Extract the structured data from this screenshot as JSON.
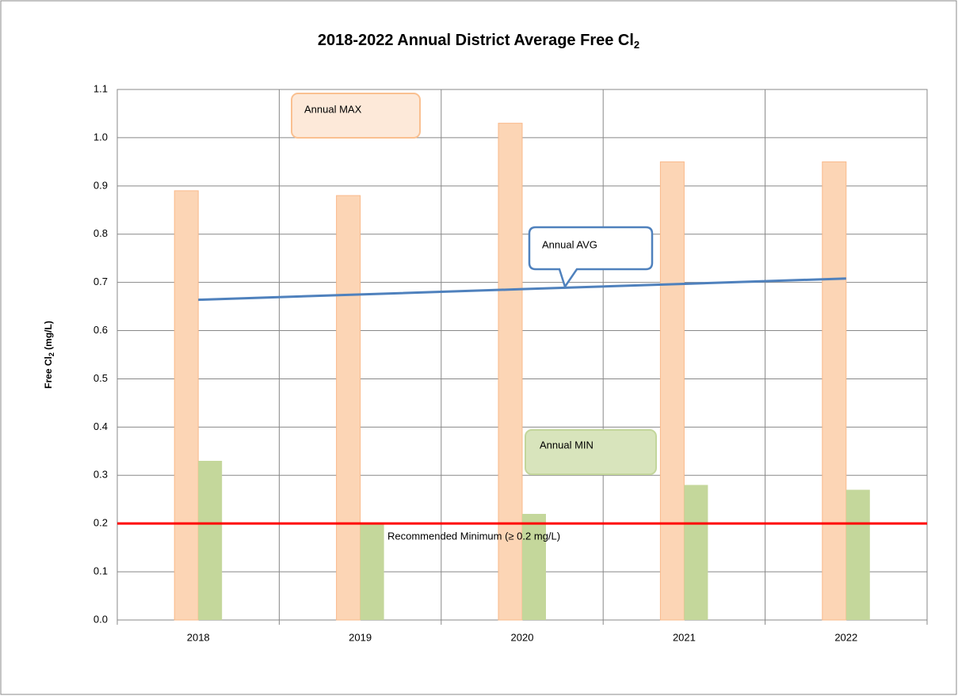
{
  "chart_data": {
    "type": "bar",
    "title": "2018-2022 Annual District Average Free Cl",
    "title_subscript": "2",
    "y_label": "Free Cl",
    "y_label_subscript": "2",
    "y_label_unit": " (mg/L)",
    "categories": [
      "2018",
      "2019",
      "2020",
      "2021",
      "2022"
    ],
    "series": [
      {
        "name": "Annual MAX",
        "type": "bar",
        "color": "#fcd5b5",
        "values": [
          0.89,
          0.88,
          1.03,
          0.95,
          0.95
        ]
      },
      {
        "name": "Annual MIN",
        "type": "bar",
        "color": "#c4d79b",
        "values": [
          0.33,
          0.2,
          0.22,
          0.28,
          0.27
        ]
      },
      {
        "name": "Annual AVG",
        "type": "line",
        "color": "#4f81bd",
        "values": [
          0.664,
          0.675,
          0.686,
          0.697,
          0.708
        ]
      }
    ],
    "reference_line": {
      "value": 0.2,
      "label": "Recommended Minimum  (≥ 0.2 mg/L)",
      "color": "#ff0000"
    },
    "ylim": [
      0,
      1.1
    ],
    "yticks": [
      {
        "value": 0,
        "label": "0.0"
      },
      0.1,
      0.2,
      0.3,
      0.4,
      0.5,
      0.6,
      0.7,
      0.8,
      0.9,
      {
        "value": 1,
        "label": "1.0"
      },
      1.1
    ],
    "grid": true
  }
}
